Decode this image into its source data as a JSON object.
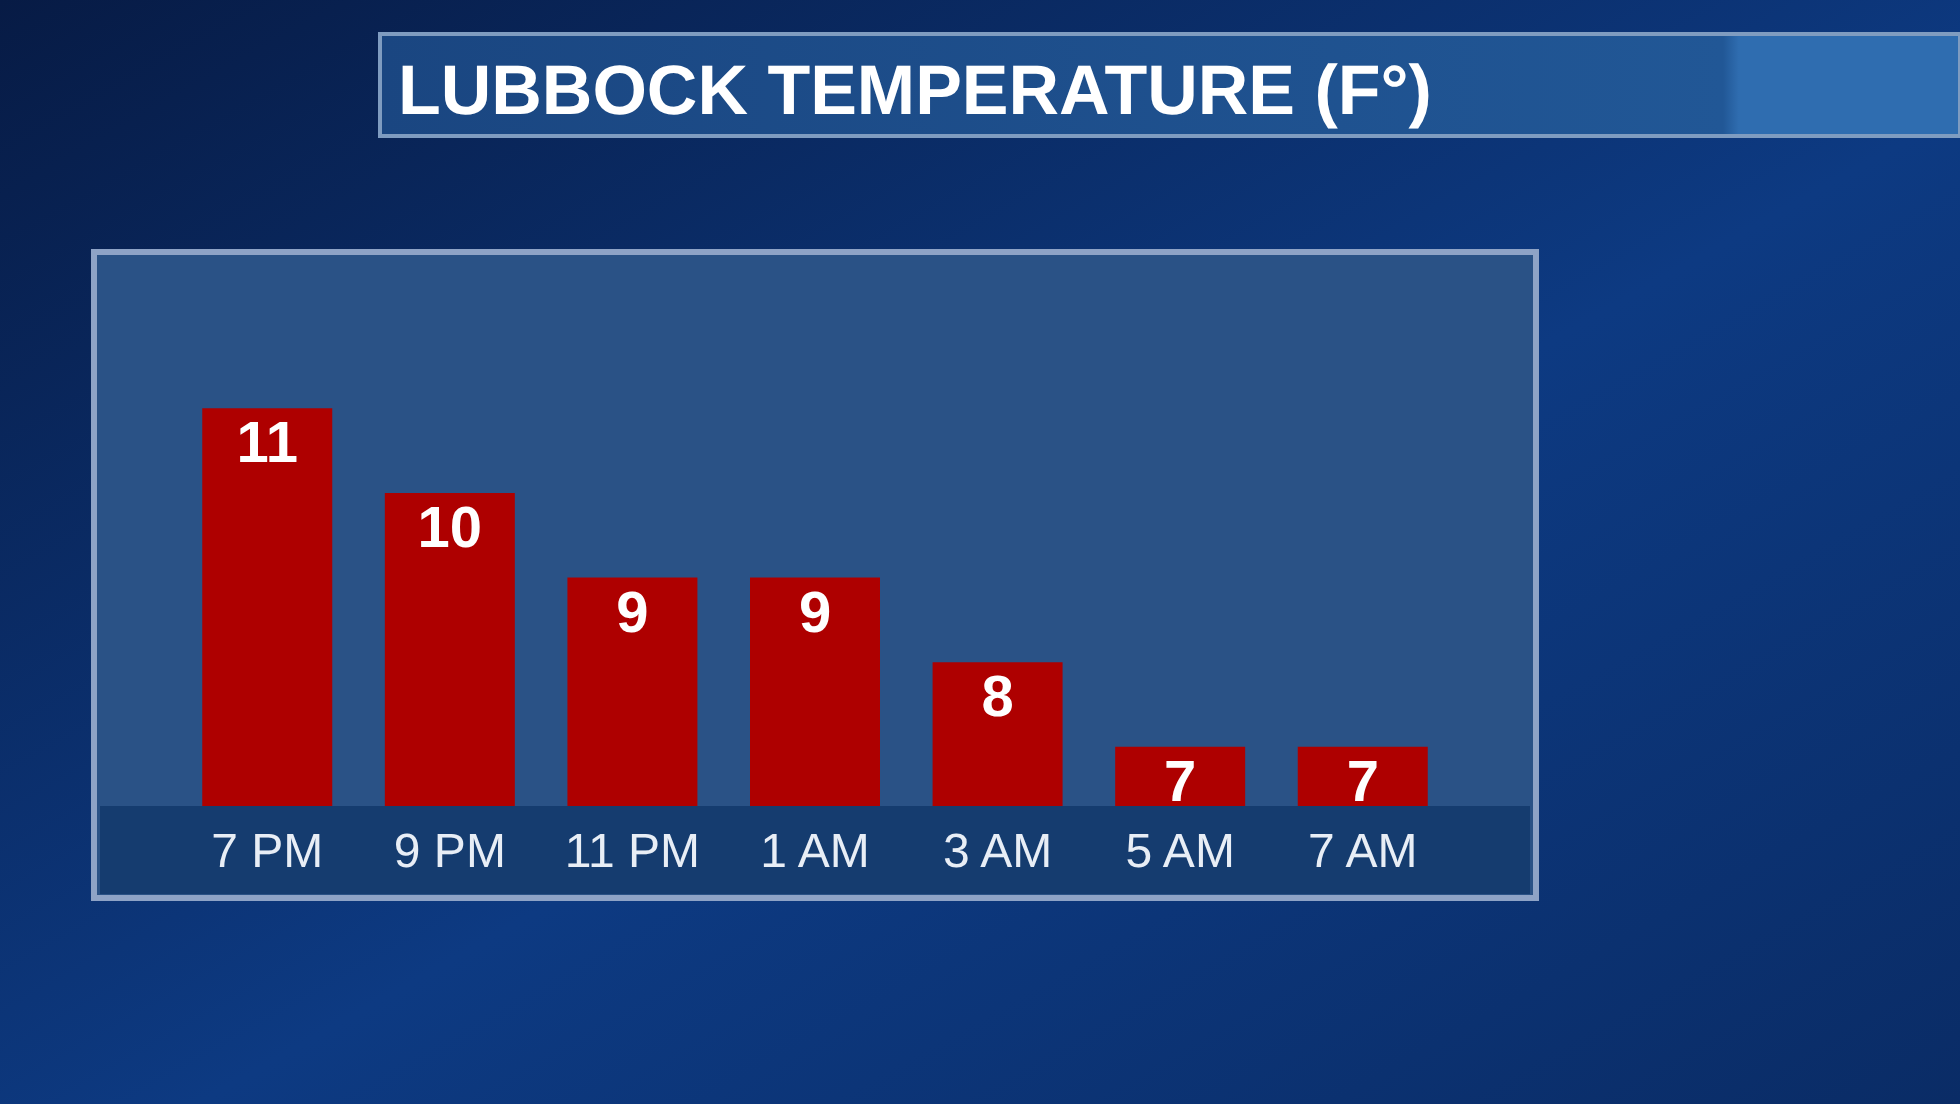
{
  "chart_data": {
    "type": "bar",
    "title": "LUBBOCK TEMPERATURE (F°)",
    "categories": [
      "7 PM",
      "9 PM",
      "11 PM",
      "1 AM",
      "3 AM",
      "5 AM",
      "7 AM"
    ],
    "values": [
      11,
      10,
      9,
      9,
      8,
      7,
      7
    ],
    "color": "#ae0000",
    "ylim": [
      6.3,
      12.8
    ],
    "data_labels": true,
    "tick_labels": "x"
  }
}
